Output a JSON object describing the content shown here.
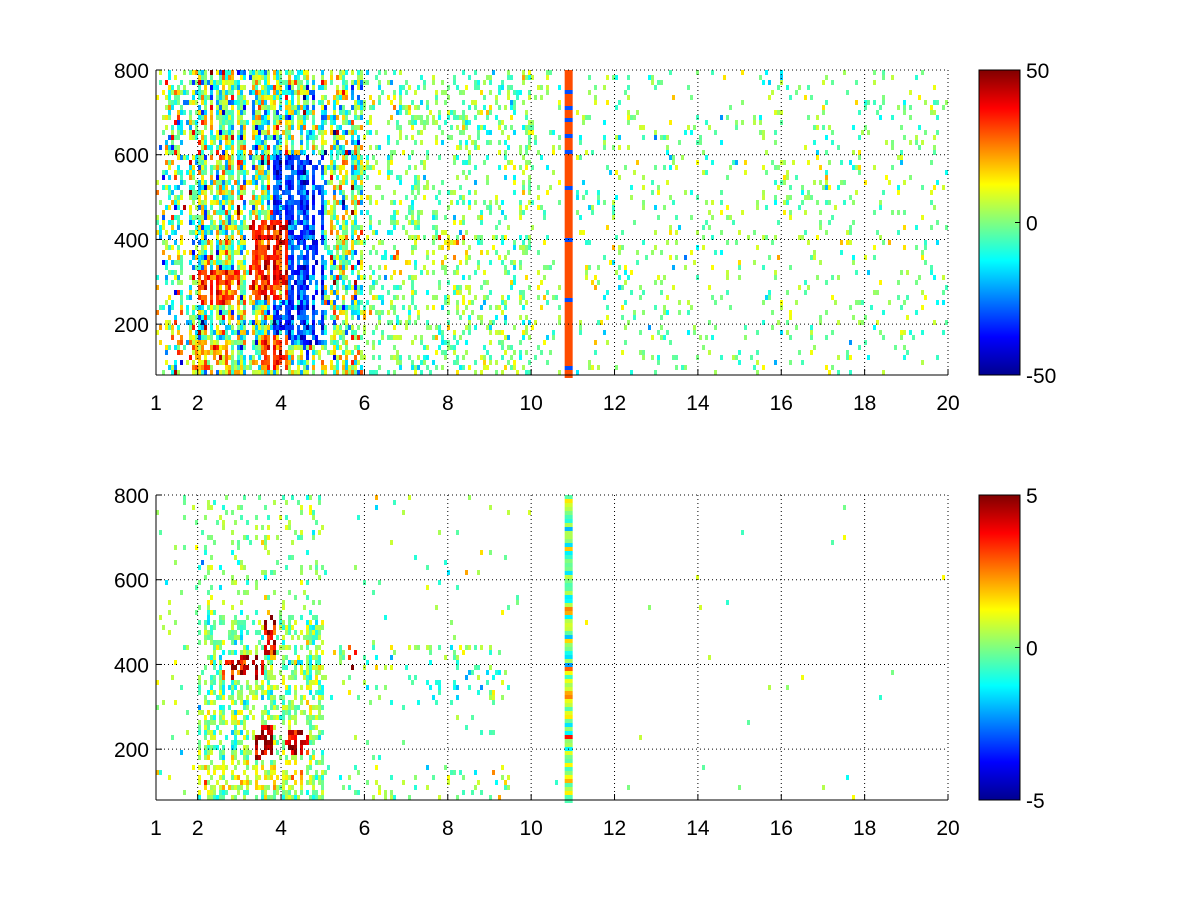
{
  "chart_data": [
    {
      "type": "heatmap",
      "title": "",
      "xlabel": "",
      "ylabel": "",
      "xlim": [
        1,
        20
      ],
      "ylim": [
        80,
        800
      ],
      "xticks": [
        1,
        2,
        4,
        6,
        8,
        10,
        12,
        14,
        16,
        18,
        20
      ],
      "yticks": [
        200,
        400,
        600,
        800
      ],
      "grid": true,
      "colormap": "jet",
      "clim": [
        -50,
        50
      ],
      "colorbar_ticks": [
        -50,
        0,
        50
      ],
      "feature_x": 10.9,
      "features": [
        {
          "x": [
            2.0,
            3.0
          ],
          "y": [
            250,
            330
          ],
          "value": 30
        },
        {
          "x": [
            3.2,
            4.2
          ],
          "y": [
            260,
            450
          ],
          "value": 35
        },
        {
          "x": [
            3.5,
            4.2
          ],
          "y": [
            90,
            180
          ],
          "value": 30
        },
        {
          "x": [
            1.8,
            2.8
          ],
          "y": [
            90,
            160
          ],
          "value": 20
        },
        {
          "x": [
            3.8,
            5.0
          ],
          "y": [
            150,
            600
          ],
          "value": -30
        },
        {
          "x": [
            6.7,
            7.1
          ],
          "y": [
            320,
            380
          ],
          "value": 25
        },
        {
          "x": [
            7.8,
            8.5
          ],
          "y": [
            340,
            410
          ],
          "value": 15
        }
      ]
    },
    {
      "type": "heatmap",
      "title": "",
      "xlabel": "",
      "ylabel": "",
      "xlim": [
        1,
        20
      ],
      "ylim": [
        80,
        800
      ],
      "xticks": [
        1,
        2,
        4,
        6,
        8,
        10,
        12,
        14,
        16,
        18,
        20
      ],
      "yticks": [
        200,
        400,
        600,
        800
      ],
      "grid": true,
      "colormap": "jet",
      "clim": [
        -5,
        5
      ],
      "colorbar_ticks": [
        -5,
        0,
        5
      ],
      "feature_x": 10.9,
      "features": [
        {
          "x": [
            3.4,
            3.8
          ],
          "y": [
            180,
            260
          ],
          "value": 4.5
        },
        {
          "x": [
            4.1,
            4.7
          ],
          "y": [
            190,
            250
          ],
          "value": 4
        },
        {
          "x": [
            2.6,
            3.6
          ],
          "y": [
            360,
            420
          ],
          "value": 4
        },
        {
          "x": [
            3.6,
            3.9
          ],
          "y": [
            420,
            520
          ],
          "value": 4
        },
        {
          "x": [
            5.5,
            5.8
          ],
          "y": [
            370,
            450
          ],
          "value": 3
        },
        {
          "x": [
            2.0,
            4.8
          ],
          "y": [
            100,
            170
          ],
          "value": 1
        },
        {
          "x": [
            7.2,
            9.0
          ],
          "y": [
            320,
            400
          ],
          "value": -1.2
        }
      ]
    }
  ]
}
